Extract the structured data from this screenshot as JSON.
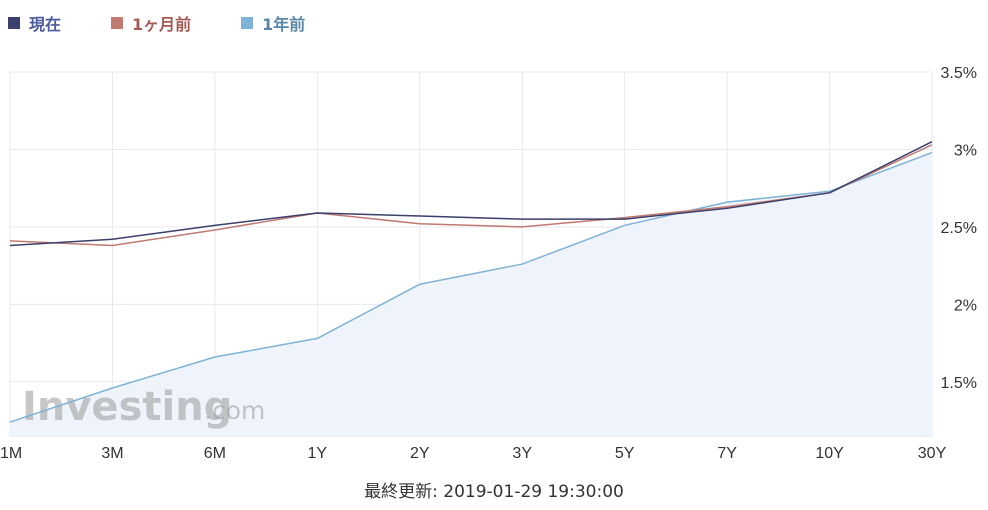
{
  "legend": [
    {
      "label": "現在",
      "color": "#3b3f6b",
      "text_color": "#4a5a9a"
    },
    {
      "label": "1ヶ月前",
      "color": "#c07a72",
      "text_color": "#a35a55"
    },
    {
      "label": "1年前",
      "color": "#7fb3d5",
      "text_color": "#5a86a6"
    }
  ],
  "watermark": {
    "brand": "Investing",
    "suffix": ".com"
  },
  "footer": {
    "last_updated": "最終更新: 2019-01-29 19:30:00"
  },
  "chart_data": {
    "type": "line",
    "x": [
      "1M",
      "3M",
      "6M",
      "1Y",
      "2Y",
      "3Y",
      "5Y",
      "7Y",
      "10Y",
      "30Y"
    ],
    "y_ticks": [
      "1.5%",
      "2%",
      "2.5%",
      "3%",
      "3.5%"
    ],
    "y_tick_values": [
      1.5,
      2.0,
      2.5,
      3.0,
      3.5
    ],
    "ylim": [
      1.15,
      3.5
    ],
    "grid": true,
    "legend_position": "top-left",
    "series": [
      {
        "name": "現在",
        "color": "#3b3f6b",
        "values": [
          2.38,
          2.42,
          2.51,
          2.59,
          2.57,
          2.55,
          2.55,
          2.62,
          2.72,
          3.05
        ]
      },
      {
        "name": "1ヶ月前",
        "color": "#c07a72",
        "values": [
          2.41,
          2.38,
          2.48,
          2.59,
          2.52,
          2.5,
          2.56,
          2.63,
          2.72,
          3.03
        ]
      },
      {
        "name": "1年前",
        "color": "#7fb3d5",
        "values": [
          1.24,
          1.46,
          1.66,
          1.78,
          2.13,
          2.26,
          2.51,
          2.66,
          2.73,
          2.98
        ],
        "area": true
      }
    ]
  }
}
